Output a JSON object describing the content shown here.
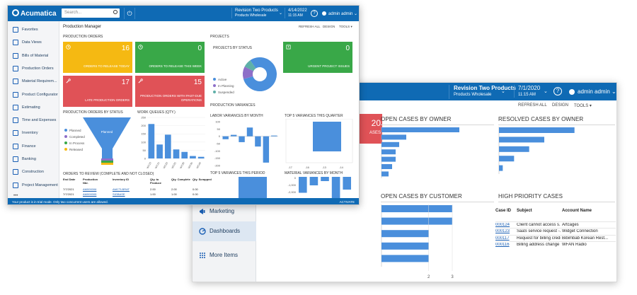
{
  "back": {
    "company": "Revision Two Products",
    "branch": "Products Wholesale",
    "date": "7/1/2020",
    "time": "11:15 AM",
    "help": "?",
    "user": "admin admin",
    "toolbar": {
      "refresh": "REFRESH ALL",
      "design": "DESIGN",
      "tools": "TOOLS"
    },
    "red_tile": {
      "value": "20",
      "label": "ASES"
    },
    "sections": {
      "open_by_owner": "OPEN CASES BY OWNER",
      "resolved_by_owner": "RESOLVED CASES BY OWNER",
      "open_by_customer": "OPEN CASES BY CUSTOMER",
      "high_priority": "HIGH PRIORITY CASES"
    },
    "customer_axis_ticks": [
      "2",
      "3"
    ],
    "sidebar": [
      {
        "label": "Marketing",
        "icon": "megaphone-icon"
      },
      {
        "label": "Dashboards",
        "icon": "dashboard-icon",
        "active": true
      },
      {
        "label": "More Items",
        "icon": "grid-icon"
      }
    ],
    "high_priority": {
      "columns": [
        "Case ID",
        "Subject",
        "Account Name"
      ],
      "rows": [
        [
          "000124",
          "Client cannot access s...",
          "Artcages"
        ],
        [
          "000123",
          "SaaS service request -...",
          "Widget Connection"
        ],
        [
          "000117",
          "Request for billing credit",
          "Bibimbab Korean Rest..."
        ],
        [
          "000116",
          "Billing address change",
          "WFAN Radio"
        ]
      ]
    }
  },
  "front": {
    "logo": "Acumatica",
    "search_placeholder": "Search...",
    "company": "Revision Two Products",
    "branch": "Products Wholesale",
    "date": "4/14/2022",
    "time": "11:15 AM",
    "help": "?",
    "user": "admin admin",
    "page_title": "Production Manager",
    "toolbar": {
      "refresh": "REFRESH ALL",
      "design": "DESIGN",
      "tools": "TOOLS"
    },
    "sidebar": [
      {
        "label": "Favorites",
        "icon": "star-icon"
      },
      {
        "label": "Data Views",
        "icon": "chart-icon"
      },
      {
        "label": "Bills of Material",
        "icon": "document-icon"
      },
      {
        "label": "Production Orders",
        "icon": "document-icon"
      },
      {
        "label": "Material Requirem...",
        "icon": "wrench-icon"
      },
      {
        "label": "Product Configurator",
        "icon": "wrench-icon"
      },
      {
        "label": "Estimating",
        "icon": "pencil-icon"
      },
      {
        "label": "Time and Expenses",
        "icon": "clock-icon"
      },
      {
        "label": "Inventory",
        "icon": "truck-icon"
      },
      {
        "label": "Finance",
        "icon": "finance-icon"
      },
      {
        "label": "Banking",
        "icon": "bank-icon"
      },
      {
        "label": "Construction",
        "icon": "construction-icon"
      },
      {
        "label": "Project Management",
        "icon": "project-icon"
      }
    ],
    "sections": {
      "production_orders": "PRODUCTION ORDERS",
      "projects": "PROJECTS",
      "projects_by_status": "PROJECTS BY STATUS",
      "orders_by_status": "PRODUCTION ORDERS BY STATUS",
      "work_queues": "WORK QUEUES (QTY.)",
      "production_variances": "PRODUCTION VARIANCES",
      "labor_variances": "LABOR VARIANCES BY MONTH",
      "top5_quarter": "TOP 5 VARIANCES THIS QUARTER",
      "top5_period": "TOP 5 VARIANCES THIS PERIOD",
      "material_variances": "MATERIAL VARIANCES BY MONTH",
      "orders_to_review": "ORDERS TO REVIEW (COMPLETE AND NOT CLOSED)"
    },
    "tiles": [
      {
        "value": "16",
        "label": "ORDERS TO RELEASE TODAY",
        "color": "#f5b912"
      },
      {
        "value": "0",
        "label": "ORDERS TO RELEASE THIS WEEK",
        "color": "#39a848"
      },
      {
        "value": "0",
        "label": "URGENT PROJECT ISSUES",
        "color": "#39a848"
      },
      {
        "value": "17",
        "label": "LATE PRODUCTION ORDERS",
        "color": "#e05257"
      },
      {
        "value": "15",
        "label": "PRODUCTION ORDERS WITH PAST-DUE OPERATIONS",
        "color": "#e05257"
      }
    ],
    "project_status_legend": [
      "Active",
      "In Planning",
      "Suspended"
    ],
    "order_status_legend": [
      "Planned",
      "Completed",
      "In Process",
      "Released"
    ],
    "funnel_label": "Planned",
    "labor_y_ticks": [
      "100",
      "50",
      "0",
      "-50",
      "-100",
      "-150",
      "-200"
    ],
    "material_y_ticks": [
      "0",
      "-1,000",
      "-2,000"
    ],
    "top5_quarter_y_ticks": [
      "-17",
      "-16",
      "-13",
      "-14"
    ],
    "work_queue_y_ticks": [
      "250",
      "200",
      "150",
      "100",
      "50",
      "0"
    ],
    "work_queue_x_ticks": [
      "WC10",
      "WC15",
      "WC20",
      "WC25",
      "WC30",
      "WC35",
      "WC40"
    ],
    "review_table": {
      "columns": [
        "End Date",
        "Production Nbr.",
        "Inventory ID",
        "Qty. to Produce",
        "Qty. Complete",
        "Qty. Scrapped"
      ],
      "rows": [
        [
          "7/7/2021",
          "AM000006",
          "AMCTLBRAT",
          "2.00",
          "2.00",
          "0.00"
        ],
        [
          "7/7/2021",
          "AM000005",
          "SIGBASE",
          "1.00",
          "1.00",
          "0.00"
        ]
      ]
    },
    "status_bar": {
      "message": "Your product is in trial mode. Only two concurrent users are allowed.",
      "action": "ACTIVATE"
    }
  },
  "colors": {
    "brand_blue": "#0f6ab4",
    "chart_blue": "#4a8fdc",
    "tile_yellow": "#f5b912",
    "tile_green": "#39a848",
    "tile_red": "#e05257"
  },
  "chart_data": [
    {
      "type": "bar",
      "orientation": "horizontal",
      "title": "OPEN CASES BY OWNER",
      "values": [
        22,
        7,
        5,
        4,
        4,
        3,
        2
      ]
    },
    {
      "type": "bar",
      "orientation": "horizontal",
      "title": "RESOLVED CASES BY OWNER",
      "values": [
        20,
        12,
        8,
        4,
        1
      ]
    },
    {
      "type": "bar",
      "orientation": "horizontal",
      "title": "OPEN CASES BY CUSTOMER",
      "values": [
        3,
        3,
        2,
        2,
        2
      ],
      "x_ticks": [
        "2",
        "3"
      ]
    },
    {
      "type": "pie",
      "title": "PROJECTS BY STATUS",
      "categories": [
        "Active",
        "In Planning",
        "Suspended"
      ],
      "values": [
        80,
        12,
        8
      ]
    },
    {
      "type": "bar",
      "title": "WORK QUEUES (QTY.)",
      "categories": [
        "WC10",
        "WC15",
        "WC20",
        "WC25",
        "WC30",
        "WC35",
        "WC40"
      ],
      "values": [
        210,
        85,
        145,
        55,
        40,
        15,
        10
      ],
      "ylim": [
        0,
        250
      ]
    },
    {
      "type": "bar",
      "title": "LABOR VARIANCES BY MONTH",
      "values": [
        -20,
        10,
        -40,
        60,
        -70,
        -180,
        5
      ],
      "ylim": [
        -200,
        100
      ]
    },
    {
      "type": "bar",
      "title": "TOP 5 VARIANCES THIS QUARTER",
      "values": [
        -17
      ]
    },
    {
      "type": "bar",
      "title": "MATERIAL VARIANCES BY MONTH",
      "values": [
        -1500,
        -800,
        -400,
        -2000,
        -1200
      ],
      "ylim": [
        -2000,
        0
      ]
    }
  ]
}
